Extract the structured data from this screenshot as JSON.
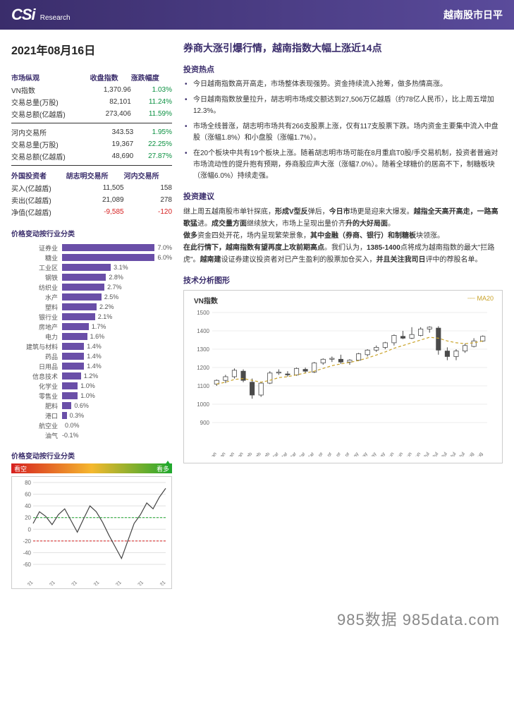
{
  "header": {
    "logo": "CSi",
    "logo_sub": "Research",
    "title": "越南股市日平"
  },
  "date": "2021年08月16日",
  "main_title": "券商大涨引爆行情，越南指数大幅上涨近14点",
  "left": {
    "market_overview": {
      "label": "市场纵观",
      "cols": [
        "",
        "收盘指数",
        "涨跌幅度"
      ],
      "rows": [
        {
          "name": "VN指数",
          "v": "1,370.96",
          "chg": "1.03%",
          "cls": "green"
        },
        {
          "name": "交易总量(万股)",
          "v": "82,101",
          "chg": "11.24%",
          "cls": "green"
        },
        {
          "name": "交易总额(亿越盾)",
          "v": "273,406",
          "chg": "11.59%",
          "cls": "green"
        }
      ]
    },
    "hnx": {
      "label": "河内交易所",
      "rows": [
        {
          "name": "河内交易所",
          "v": "343.53",
          "chg": "1.95%",
          "cls": "green"
        },
        {
          "name": "交易总量(万股)",
          "v": "19,367",
          "chg": "22.25%",
          "cls": "green"
        },
        {
          "name": "交易总额(亿越盾)",
          "v": "48,690",
          "chg": "27.87%",
          "cls": "green"
        }
      ]
    },
    "foreign": {
      "label": "外国投资者",
      "cols": [
        "",
        "胡志明交易所",
        "河内交易所"
      ],
      "rows": [
        {
          "name": "买入(亿越盾)",
          "a": "11,505",
          "b": "158",
          "cls": ""
        },
        {
          "name": "卖出(亿越盾)",
          "a": "21,089",
          "b": "278",
          "cls": ""
        },
        {
          "name": "净值(亿越盾)",
          "a": "-9,585",
          "b": "-120",
          "cls": "red"
        }
      ]
    },
    "sector_bar": {
      "label": "价格变动按行业分类",
      "max": 7.0,
      "bar_color": "#6a4fa8",
      "rows": [
        {
          "label": "证券业",
          "val": 7.0,
          "txt": "7.0%"
        },
        {
          "label": "糖业",
          "val": 6.0,
          "txt": "6.0%"
        },
        {
          "label": "工业区",
          "val": 3.1,
          "txt": "3.1%"
        },
        {
          "label": "钢铁",
          "val": 2.8,
          "txt": "2.8%"
        },
        {
          "label": "纺织业",
          "val": 2.7,
          "txt": "2.7%"
        },
        {
          "label": "水产",
          "val": 2.5,
          "txt": "2.5%"
        },
        {
          "label": "塑料",
          "val": 2.2,
          "txt": "2.2%"
        },
        {
          "label": "银行业",
          "val": 2.1,
          "txt": "2.1%"
        },
        {
          "label": "房地产",
          "val": 1.7,
          "txt": "1.7%"
        },
        {
          "label": "电力",
          "val": 1.6,
          "txt": "1.6%"
        },
        {
          "label": "建筑与材料",
          "val": 1.4,
          "txt": "1.4%"
        },
        {
          "label": "药品",
          "val": 1.4,
          "txt": "1.4%"
        },
        {
          "label": "日用品",
          "val": 1.4,
          "txt": "1.4%"
        },
        {
          "label": "信息技术",
          "val": 1.2,
          "txt": "1.2%"
        },
        {
          "label": "化学业",
          "val": 1.0,
          "txt": "1.0%"
        },
        {
          "label": "零售业",
          "val": 1.0,
          "txt": "1.0%"
        },
        {
          "label": "肥料",
          "val": 0.6,
          "txt": "0.6%"
        },
        {
          "label": "港口",
          "val": 0.3,
          "txt": "0.3%"
        },
        {
          "label": "航空业",
          "val": 0.0,
          "txt": "0.0%"
        },
        {
          "label": "油气",
          "val": -0.1,
          "txt": "-0.1%"
        }
      ]
    },
    "sentiment": {
      "label": "价格变动按行业分类",
      "left": "看空",
      "right": "看多"
    },
    "small_line_chart": {
      "ylim": [
        -60,
        80
      ],
      "ytick": [
        -60,
        -40,
        -20,
        0,
        20,
        40,
        60,
        80
      ],
      "xlabels": [
        "Jan-21",
        "Feb-21",
        "Mar-21",
        "Apr-21",
        "May-21",
        "Jun-21",
        "Jul-21"
      ],
      "grid": "#e0e0e0",
      "line": "#444",
      "ref20": "#1fa82e",
      "refneg20": "#d62020",
      "points": [
        10,
        30,
        22,
        8,
        25,
        35,
        15,
        -5,
        18,
        40,
        30,
        12,
        -10,
        -30,
        -50,
        -20,
        10,
        25,
        45,
        35,
        55,
        70
      ]
    }
  },
  "right": {
    "hotspot_label": "投资热点",
    "hotspot": [
      "今日越南指数高开高走，市场整体表现强势。资金持续流入抢筹，做多热情高涨。",
      "今日越南指数放量拉升，胡志明市场成交额达到27,506万亿越盾（约78亿人民币），比上周五增加12.3%。",
      "市场全线普涨，胡志明市场共有266支股票上涨，仅有117支股票下跌。场内资金主要集中流入中盘股（涨幅1.8%）和小盘股（涨幅1.7%）。",
      "在20个板块中共有19个板块上涨。随着胡志明市场可能在8月重启T0股/手交易机制，投资者普遍对市场流动性的提升抱有预期，券商股应声大涨（涨幅7.0%）。随着全球糖价的居高不下，制糖板块（涨幅6.0%）持续走强。"
    ],
    "advice_label": "投资建议",
    "advice": "继上周五越南股市单针探底，<b>形成V型反</b>弹后，<b>今日市</b>场更是迎来大爆发。<b>越指全天高开高走，一路高歌猛</b>进。<b>成交量方面</b>继续放大，市场上呈现出量价齐<b>升的大好局面</b>。<br><b>做多</b>资金四处开花，场内呈现繁荣景象，<b>其中金融（券商、银行）和制糖板</b>块领涨。<br><b>在此行情下，越南指数有望再度上攻前期高点</b>。我们认为，<b>1385-1400</b>点将成为越南指数的最大\"拦路虎\"。<b>越南建</b>设证券建议投资者对已产生盈利的股票加仓买入，<b>并且关注我司日</b>评中的荐股名单。",
    "tech_label": "技术分析图形",
    "vn_chart": {
      "title": "VN指数",
      "ma_label": "MA20",
      "ylim": [
        900,
        1500
      ],
      "ytick": [
        900,
        1000,
        1100,
        1200,
        1300,
        1400,
        1500
      ],
      "xlabels": [
        "4-Jan",
        "11-Jan",
        "18-Jan",
        "25-Jan",
        "1-Feb",
        "8-Feb",
        "22-Feb",
        "1-Mar",
        "8-Mar",
        "15-Mar",
        "22-Mar",
        "29-Mar",
        "5-Apr",
        "12-Apr",
        "19-Apr",
        "27-Apr",
        "10-May",
        "17-May",
        "24-May",
        "31-May",
        "7-Jun",
        "14-Jun",
        "21-Jun",
        "28-Jun",
        "5-Jul",
        "12-Jul",
        "15-Jul",
        "22-Jul",
        "29-Jul",
        "5-Aug",
        "12-Aug"
      ],
      "grid": "#eee",
      "candle_up": "#4a4a4a",
      "candle_down": "#4a4a4a",
      "ma_color": "#c9a227",
      "candles": [
        [
          1110,
          1135,
          1100,
          1130
        ],
        [
          1130,
          1160,
          1115,
          1150
        ],
        [
          1150,
          1195,
          1140,
          1185
        ],
        [
          1180,
          1190,
          1120,
          1130
        ],
        [
          1120,
          1140,
          1030,
          1050
        ],
        [
          1050,
          1120,
          1040,
          1115
        ],
        [
          1115,
          1180,
          1110,
          1170
        ],
        [
          1170,
          1190,
          1160,
          1175
        ],
        [
          1165,
          1180,
          1150,
          1160
        ],
        [
          1160,
          1200,
          1155,
          1195
        ],
        [
          1190,
          1200,
          1170,
          1180
        ],
        [
          1175,
          1230,
          1170,
          1225
        ],
        [
          1225,
          1250,
          1215,
          1245
        ],
        [
          1245,
          1260,
          1230,
          1250
        ],
        [
          1245,
          1270,
          1220,
          1230
        ],
        [
          1230,
          1245,
          1215,
          1240
        ],
        [
          1240,
          1280,
          1235,
          1275
        ],
        [
          1270,
          1300,
          1260,
          1295
        ],
        [
          1295,
          1320,
          1285,
          1310
        ],
        [
          1310,
          1340,
          1300,
          1335
        ],
        [
          1335,
          1380,
          1320,
          1375
        ],
        [
          1370,
          1400,
          1355,
          1360
        ],
        [
          1360,
          1420,
          1355,
          1380
        ],
        [
          1375,
          1420,
          1370,
          1410
        ],
        [
          1410,
          1425,
          1390,
          1420
        ],
        [
          1415,
          1425,
          1270,
          1295
        ],
        [
          1290,
          1310,
          1240,
          1260
        ],
        [
          1260,
          1300,
          1240,
          1290
        ],
        [
          1290,
          1330,
          1280,
          1320
        ],
        [
          1315,
          1360,
          1310,
          1345
        ],
        [
          1345,
          1375,
          1340,
          1370
        ]
      ],
      "ma20": [
        1110,
        1120,
        1135,
        1140,
        1130,
        1120,
        1130,
        1145,
        1150,
        1160,
        1170,
        1180,
        1195,
        1210,
        1220,
        1228,
        1238,
        1252,
        1268,
        1285,
        1305,
        1320,
        1335,
        1350,
        1365,
        1360,
        1345,
        1335,
        1330,
        1335,
        1345
      ]
    }
  },
  "footer": "985数据 985data.com"
}
